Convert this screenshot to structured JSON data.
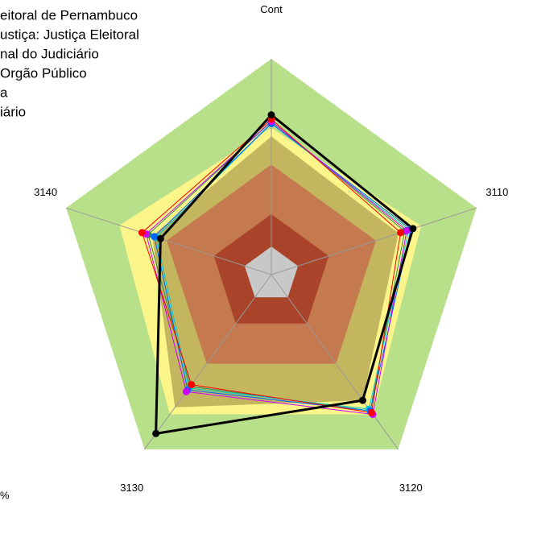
{
  "chart_data": {
    "type": "radar",
    "categories": [
      "Cont",
      "3110",
      "3120",
      "3130",
      "3140"
    ],
    "ylim": [
      0,
      100
    ],
    "bands": [
      {
        "color": "#b8e08a",
        "values": [
          100,
          100,
          100,
          100,
          100
        ]
      },
      {
        "color": "#fcf58a",
        "values": [
          68,
          73,
          80,
          80,
          74
        ]
      },
      {
        "color": "#c3b65e",
        "values": [
          64,
          62,
          72,
          76,
          58
        ]
      },
      {
        "color": "#c47a4e",
        "values": [
          51,
          51,
          51,
          51,
          51
        ]
      },
      {
        "color": "#a9432a",
        "values": [
          28,
          28,
          28,
          28,
          28
        ]
      },
      {
        "color": "#c8c8c8",
        "values": [
          13,
          13,
          13,
          13,
          13
        ]
      }
    ],
    "series": [
      {
        "name": "eitoral de Pernambuco",
        "color": "#000000",
        "values": [
          74,
          69,
          72,
          91,
          54
        ]
      },
      {
        "name": "ustiça: Justiça Eleitoral",
        "color": "#ff0000",
        "values": [
          72,
          63,
          79,
          63,
          63
        ]
      },
      {
        "name": "nal do Judiciário",
        "color": "#cc00ff",
        "values": [
          71,
          66,
          80,
          67,
          61
        ]
      },
      {
        "name": "Orgão Público",
        "color": "#0066ff",
        "values": [
          70,
          68,
          78,
          66,
          57
        ]
      },
      {
        "name": "a",
        "color": "#00cccc",
        "values": [
          70,
          67,
          77,
          65,
          56
        ]
      },
      {
        "name": "iário",
        "color": "#2e8b57",
        "values": [
          71,
          65,
          78,
          64,
          60
        ]
      }
    ],
    "annotation": "%"
  }
}
